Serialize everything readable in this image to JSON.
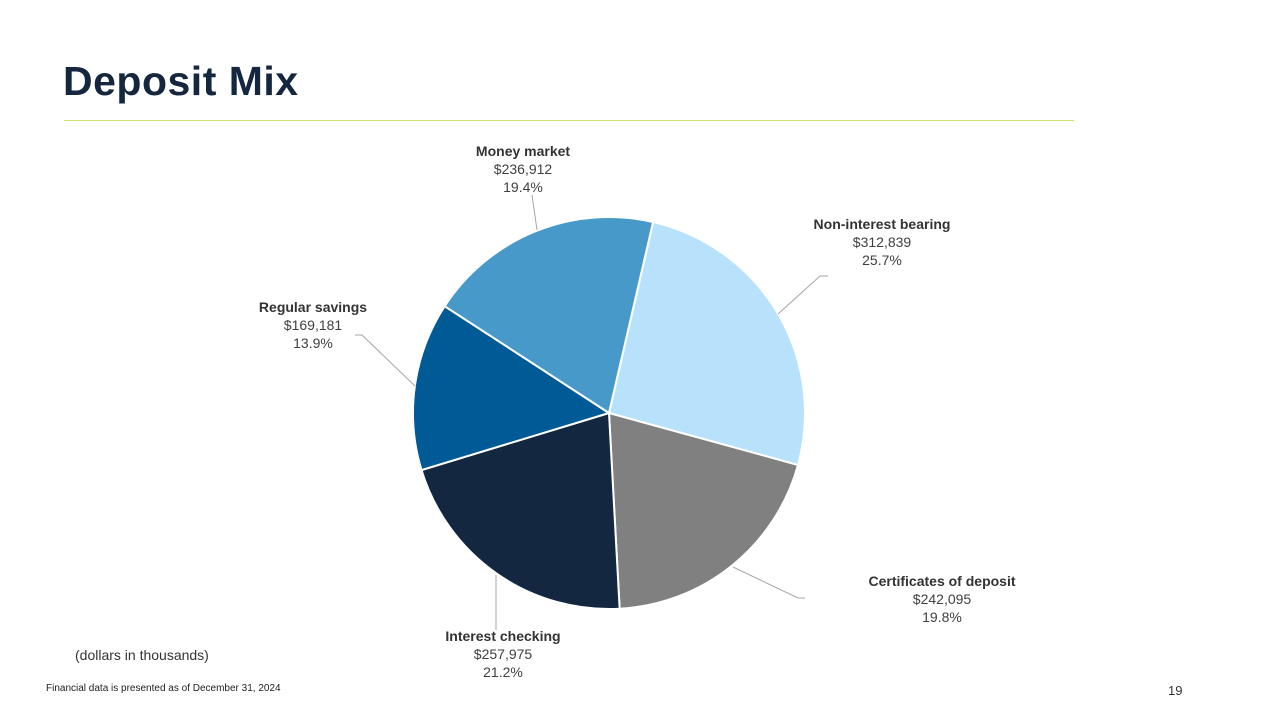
{
  "title": "Deposit Mix",
  "units_note": "(dollars in thousands)",
  "footnote": "Financial data is presented as of December 31, 2024",
  "page_number": "19",
  "chart_data": {
    "type": "pie",
    "title": "Deposit Mix",
    "start_angle_deg": 13,
    "slices": [
      {
        "name": "Non-interest bearing",
        "value": 312839,
        "amount": "$312,839",
        "percent": "25.7%",
        "color": "#b8e2fb"
      },
      {
        "name": "Certificates of deposit",
        "value": 242095,
        "amount": "$242,095",
        "percent": "19.8%",
        "color": "#808080"
      },
      {
        "name": "Interest checking",
        "value": 257975,
        "amount": "$257,975",
        "percent": "21.2%",
        "color": "#132741"
      },
      {
        "name": "Regular savings",
        "value": 169181,
        "amount": "$169,181",
        "percent": "13.9%",
        "color": "#005a96"
      },
      {
        "name": "Money market",
        "value": 236912,
        "amount": "$236,912",
        "percent": "19.4%",
        "color": "#4799c9"
      }
    ]
  }
}
